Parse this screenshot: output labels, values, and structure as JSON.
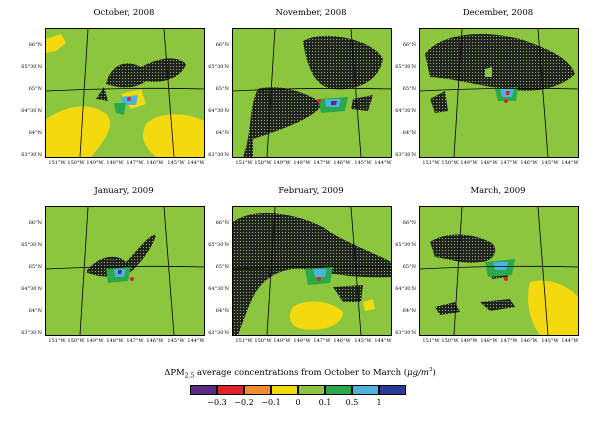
{
  "panels": [
    {
      "title": "October, 2008"
    },
    {
      "title": "November, 2008"
    },
    {
      "title": "December, 2008"
    },
    {
      "title": "January, 2009"
    },
    {
      "title": "February, 2009"
    },
    {
      "title": "March, 2009"
    }
  ],
  "lat_labels": [
    "66°N",
    "65°30′N",
    "65°N",
    "64°30′N",
    "64°N",
    "63°30′N"
  ],
  "lon_labels": [
    "151°W",
    "150°W",
    "149°W",
    "148°W",
    "147°W",
    "146°W",
    "145°W",
    "144°W"
  ],
  "colorbar": {
    "title_prefix": "ΔPM",
    "title_sub": "2.5",
    "title_mid": " average concentrations from October to March (",
    "title_unit": "μg/m",
    "title_sup": "3",
    "title_end": ")",
    "ticks": [
      "−0.3",
      "−0.2",
      "−0.1",
      "0",
      "0.1",
      "0.5",
      "1"
    ],
    "colors": [
      "#5b2a86",
      "#e0202a",
      "#f28a2e",
      "#f5d90f",
      "#8cc63f",
      "#2aa84a",
      "#4ab3e0",
      "#2b3a9a"
    ]
  },
  "map_colors": {
    "background": "#8cc63f",
    "positive_low": "#8cc63f",
    "negative_light": "#f5d90f",
    "dense_hatch": "#222222"
  }
}
